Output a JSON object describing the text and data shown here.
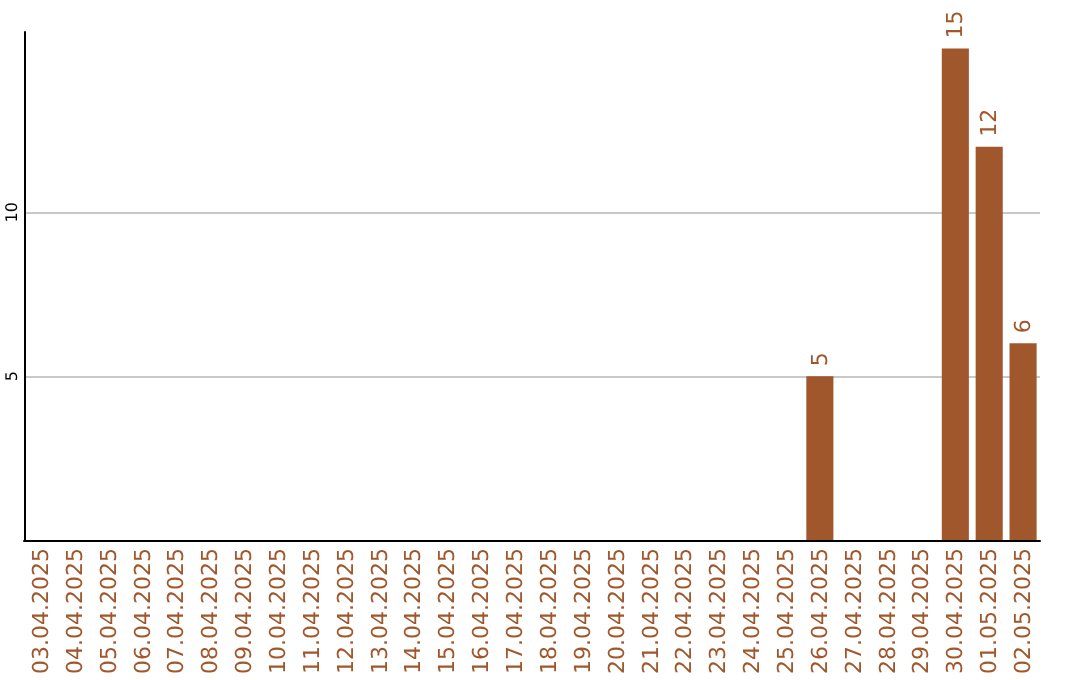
{
  "chart_data": {
    "type": "bar",
    "categories": [
      "03.04.2025",
      "04.04.2025",
      "05.04.2025",
      "06.04.2025",
      "07.04.2025",
      "08.04.2025",
      "09.04.2025",
      "10.04.2025",
      "11.04.2025",
      "12.04.2025",
      "13.04.2025",
      "14.04.2025",
      "15.04.2025",
      "16.04.2025",
      "17.04.2025",
      "18.04.2025",
      "19.04.2025",
      "20.04.2025",
      "21.04.2025",
      "22.04.2025",
      "23.04.2025",
      "24.04.2025",
      "25.04.2025",
      "26.04.2025",
      "27.04.2025",
      "28.04.2025",
      "29.04.2025",
      "30.04.2025",
      "01.05.2025",
      "02.05.2025"
    ],
    "values": [
      0,
      0,
      0,
      0,
      0,
      0,
      0,
      0,
      0,
      0,
      0,
      0,
      0,
      0,
      0,
      0,
      0,
      0,
      0,
      0,
      0,
      0,
      0,
      5,
      0,
      0,
      0,
      15,
      12,
      6
    ],
    "value_labels": [
      null,
      null,
      null,
      null,
      null,
      null,
      null,
      null,
      null,
      null,
      null,
      null,
      null,
      null,
      null,
      null,
      null,
      null,
      null,
      null,
      null,
      null,
      null,
      "5",
      null,
      null,
      null,
      "15",
      "12",
      "6"
    ],
    "color": "#a0572b",
    "ylim": [
      0,
      15.5
    ],
    "yticks": [
      5,
      10
    ],
    "grid": "y"
  }
}
